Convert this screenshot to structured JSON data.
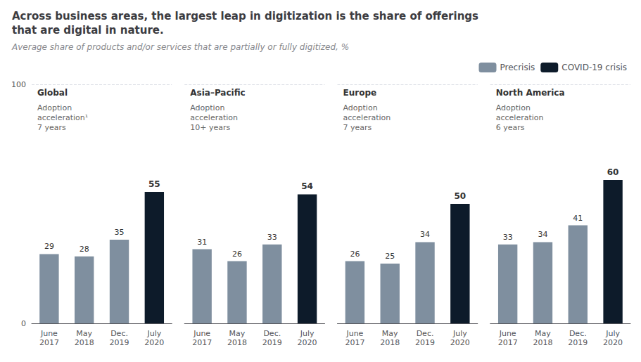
{
  "title": "Across business areas, the largest leap in digitization is the share of offerings\nthat are digital in nature.",
  "subtitle": "Average share of products and/or services that are partially or fully digitized, %",
  "legend": "upper right",
  "chart_data": [
    {
      "type": "bar",
      "title": "Global",
      "annotation": "Adoption\nacceleration¹\n7 years",
      "categories": [
        "June\n2017",
        "May\n2018",
        "Dec.\n2019",
        "July\n2020"
      ],
      "series": [
        {
          "name": "Precrisis",
          "color": "#7f8f9f",
          "values": [
            29,
            28,
            35,
            null
          ]
        },
        {
          "name": "COVID-19 crisis",
          "color": "#0d1b2a",
          "values": [
            null,
            null,
            null,
            55
          ]
        }
      ],
      "ylim": [
        0,
        100
      ],
      "yticks": [
        0,
        100
      ],
      "grid": true,
      "data_labels": true
    },
    {
      "type": "bar",
      "title": "Asia–Pacific",
      "annotation": "Adoption\nacceleration\n10+ years",
      "categories": [
        "June\n2017",
        "May\n2018",
        "Dec.\n2019",
        "July\n2020"
      ],
      "series": [
        {
          "name": "Precrisis",
          "color": "#7f8f9f",
          "values": [
            31,
            26,
            33,
            null
          ]
        },
        {
          "name": "COVID-19 crisis",
          "color": "#0d1b2a",
          "values": [
            null,
            null,
            null,
            54
          ]
        }
      ],
      "ylim": [
        0,
        100
      ],
      "yticks": [
        0,
        100
      ],
      "grid": true,
      "data_labels": true,
      "tick_labels": "x"
    },
    {
      "type": "bar",
      "title": "Europe",
      "annotation": "Adoption\nacceleration\n7 years",
      "categories": [
        "June\n2017",
        "May\n2018",
        "Dec.\n2019",
        "July\n2020"
      ],
      "series": [
        {
          "name": "Precrisis",
          "color": "#7f8f9f",
          "values": [
            26,
            25,
            34,
            null
          ]
        },
        {
          "name": "COVID-19 crisis",
          "color": "#0d1b2a",
          "values": [
            null,
            null,
            null,
            50
          ]
        }
      ],
      "ylim": [
        0,
        100
      ],
      "yticks": [
        0,
        100
      ],
      "grid": true,
      "data_labels": true,
      "tick_labels": "x"
    },
    {
      "type": "bar",
      "title": "North America",
      "annotation": "Adoption\nacceleration\n6 years",
      "categories": [
        "June\n2017",
        "May\n2018",
        "Dec.\n2019",
        "July\n2020"
      ],
      "series": [
        {
          "name": "Precrisis",
          "color": "#7f8f9f",
          "values": [
            33,
            34,
            41,
            null
          ]
        },
        {
          "name": "COVID-19 crisis",
          "color": "#0d1b2a",
          "values": [
            null,
            null,
            null,
            60
          ]
        }
      ],
      "ylim": [
        0,
        100
      ],
      "yticks": [
        0,
        100
      ],
      "grid": true,
      "data_labels": true,
      "tick_labels": "x"
    }
  ]
}
